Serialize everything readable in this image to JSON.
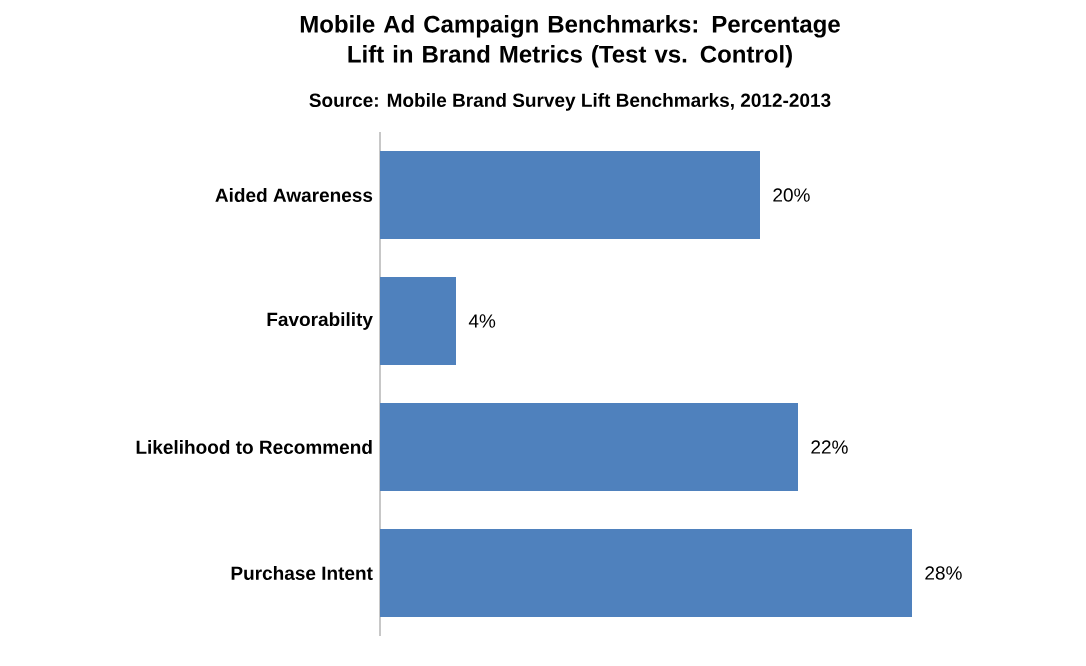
{
  "chart_data": {
    "type": "bar",
    "orientation": "horizontal",
    "title": "Mobile Ad Campaign Benchmarks: Percentage Lift in Brand Metrics (Test vs. Control)",
    "subtitle": "Source: Mobile Brand Survey Lift Benchmarks, 2012-2013",
    "categories": [
      "Aided Awareness",
      "Favorability",
      "Likelihood  to Recommend",
      "Purchase  Intent"
    ],
    "values": [
      20,
      4,
      22,
      28
    ],
    "value_labels": [
      "20%",
      "4%",
      "22%",
      "28%"
    ],
    "color": "#4f81bd"
  }
}
